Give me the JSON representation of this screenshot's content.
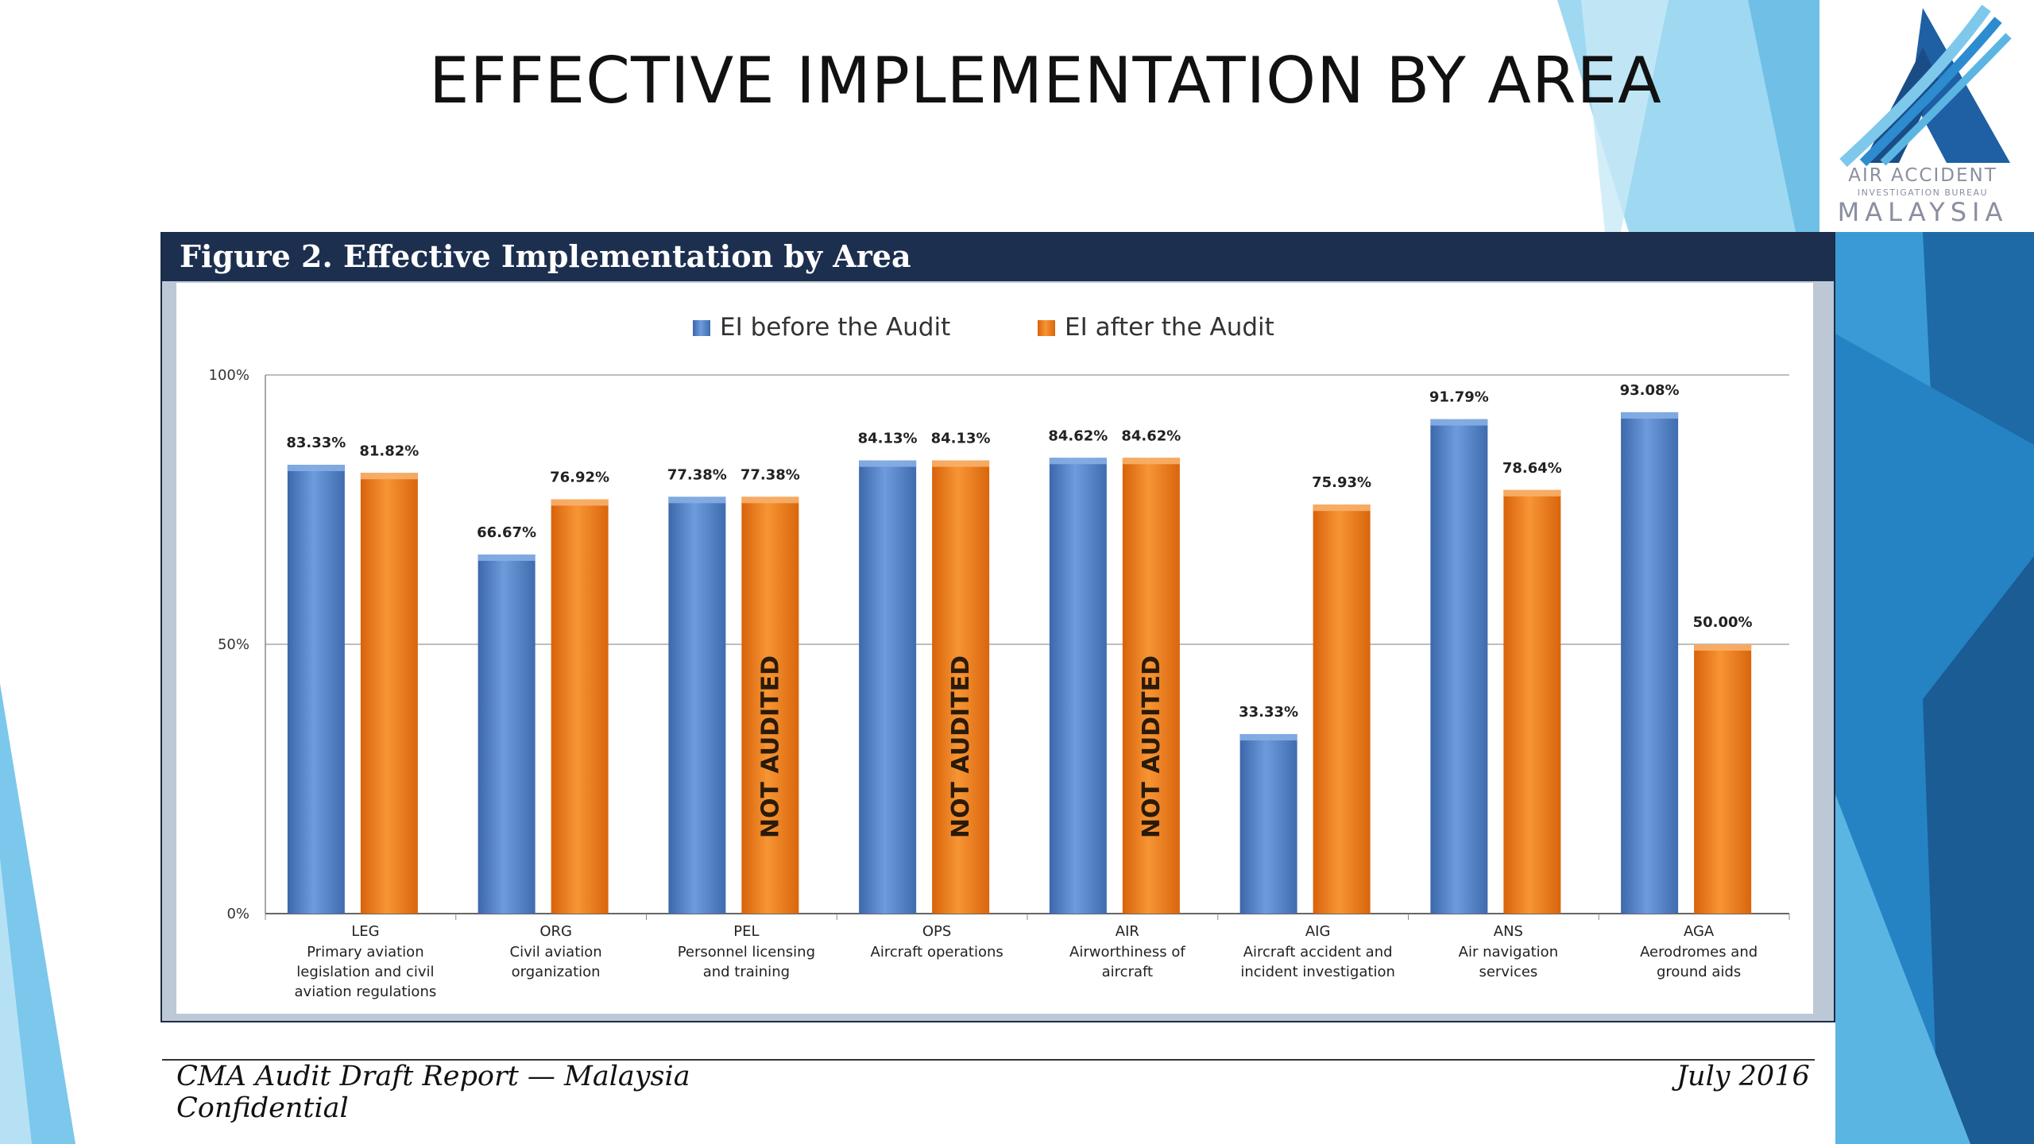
{
  "slide": {
    "title": "EFFECTIVE IMPLEMENTATION BY AREA",
    "accent_colors": [
      "#1b5c95",
      "#2f85c4",
      "#5bb5e3",
      "#9fd8f1",
      "#c8eaf7"
    ]
  },
  "logo": {
    "line1": "AIR ACCIDENT",
    "line2": "INVESTIGATION BUREAU",
    "line3": "MALAYSIA",
    "icon": "aaib-logo-icon"
  },
  "figure": {
    "title": "Figure 2. Effective Implementation by Area"
  },
  "chart_data": {
    "type": "bar",
    "title": "Figure 2. Effective Implementation by Area",
    "ylim": [
      0,
      100
    ],
    "y_ticks": [
      "0%",
      "50%",
      "100%"
    ],
    "grid": true,
    "legend_position": "top-center",
    "categories": [
      {
        "code": "LEG",
        "desc": [
          "Primary aviation",
          "legislation and civil",
          "aviation regulations"
        ]
      },
      {
        "code": "ORG",
        "desc": [
          "Civil aviation",
          "organization"
        ]
      },
      {
        "code": "PEL",
        "desc": [
          "Personnel licensing",
          "and training"
        ]
      },
      {
        "code": "OPS",
        "desc": [
          "Aircraft operations"
        ]
      },
      {
        "code": "AIR",
        "desc": [
          "Airworthiness of",
          "aircraft"
        ]
      },
      {
        "code": "AIG",
        "desc": [
          "Aircraft accident and",
          "incident investigation"
        ]
      },
      {
        "code": "ANS",
        "desc": [
          "Air navigation",
          "services"
        ]
      },
      {
        "code": "AGA",
        "desc": [
          "Aerodromes and",
          "ground aids"
        ]
      }
    ],
    "series": [
      {
        "name": "EI before the Audit",
        "color": "#4f7ec4",
        "values": [
          83.33,
          66.67,
          77.38,
          84.13,
          84.62,
          33.33,
          91.79,
          93.08
        ],
        "labels": [
          "83.33%",
          "66.67%",
          "77.38%",
          "84.13%",
          "84.62%",
          "33.33%",
          "91.79%",
          "93.08%"
        ]
      },
      {
        "name": "EI after the Audit",
        "color": "#ec7a14",
        "values": [
          81.82,
          76.92,
          77.38,
          84.13,
          84.62,
          75.93,
          78.64,
          50.0
        ],
        "labels": [
          "81.82%",
          "76.92%",
          "77.38%",
          "84.13%",
          "84.62%",
          "75.93%",
          "78.64%",
          "50.00%"
        ],
        "annotations": [
          "",
          "",
          "NOT AUDITED",
          "NOT AUDITED",
          "NOT AUDITED",
          "",
          "",
          ""
        ]
      }
    ]
  },
  "footer": {
    "left_line1": "CMA Audit Draft Report — Malaysia",
    "left_line2": "Confidential",
    "right": "July 2016"
  }
}
